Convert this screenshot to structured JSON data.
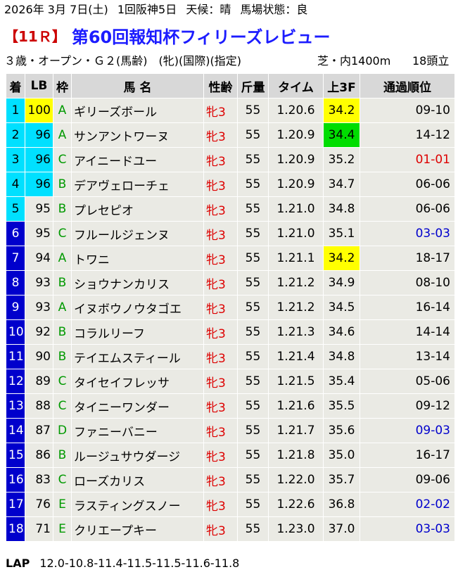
{
  "header": {
    "date": "2026年 3月 7日(土)",
    "meeting": "1回阪神5日",
    "weather": "天候：晴",
    "track": "馬場状態：良",
    "race_no": "【11Ｒ】",
    "race_name": "第60回報知杯フィリーズレビュー",
    "conditions": "３歳・オープン・Ｇ２(馬齢)　(牝)(国際)(指定)",
    "course": "芝・内1400m",
    "runners": "18頭立"
  },
  "columns": [
    "着",
    "LB",
    "枠",
    "馬 名",
    "性齢",
    "斤量",
    "タイム",
    "上3F",
    "通過順位"
  ],
  "rows": [
    {
      "pos": "1",
      "lb": "100",
      "waku": "A",
      "name": "ギリーズボール",
      "sex": "牝3",
      "wt": "55",
      "time": "1.20.6",
      "f3": "34.2",
      "pass": "09-10"
    },
    {
      "pos": "2",
      "lb": "96",
      "waku": "A",
      "name": "サンアントワーヌ",
      "sex": "牝3",
      "wt": "55",
      "time": "1.20.9",
      "f3": "34.4",
      "pass": "14-12"
    },
    {
      "pos": "3",
      "lb": "96",
      "waku": "C",
      "name": "アイニードユー",
      "sex": "牝3",
      "wt": "55",
      "time": "1.20.9",
      "f3": "35.2",
      "pass": "01-01"
    },
    {
      "pos": "4",
      "lb": "96",
      "waku": "B",
      "name": "デアヴェローチェ",
      "sex": "牝3",
      "wt": "55",
      "time": "1.20.9",
      "f3": "34.7",
      "pass": "06-06"
    },
    {
      "pos": "5",
      "lb": "95",
      "waku": "B",
      "name": "プレセピオ",
      "sex": "牝3",
      "wt": "55",
      "time": "1.21.0",
      "f3": "34.8",
      "pass": "06-06"
    },
    {
      "pos": "6",
      "lb": "95",
      "waku": "C",
      "name": "フルールジェンヌ",
      "sex": "牝3",
      "wt": "55",
      "time": "1.21.0",
      "f3": "35.1",
      "pass": "03-03"
    },
    {
      "pos": "7",
      "lb": "94",
      "waku": "A",
      "name": "トワニ",
      "sex": "牝3",
      "wt": "55",
      "time": "1.21.1",
      "f3": "34.2",
      "pass": "18-17"
    },
    {
      "pos": "8",
      "lb": "93",
      "waku": "B",
      "name": "ショウナンカリス",
      "sex": "牝3",
      "wt": "55",
      "time": "1.21.2",
      "f3": "34.9",
      "pass": "08-10"
    },
    {
      "pos": "9",
      "lb": "93",
      "waku": "A",
      "name": "イヌボウノウタゴエ",
      "sex": "牝3",
      "wt": "55",
      "time": "1.21.2",
      "f3": "34.5",
      "pass": "16-14"
    },
    {
      "pos": "10",
      "lb": "92",
      "waku": "B",
      "name": "コラルリーフ",
      "sex": "牝3",
      "wt": "55",
      "time": "1.21.3",
      "f3": "34.6",
      "pass": "14-14"
    },
    {
      "pos": "11",
      "lb": "90",
      "waku": "B",
      "name": "テイエムスティール",
      "sex": "牝3",
      "wt": "55",
      "time": "1.21.4",
      "f3": "34.8",
      "pass": "13-14"
    },
    {
      "pos": "12",
      "lb": "89",
      "waku": "C",
      "name": "タイセイフレッサ",
      "sex": "牝3",
      "wt": "55",
      "time": "1.21.5",
      "f3": "35.4",
      "pass": "05-06"
    },
    {
      "pos": "13",
      "lb": "88",
      "waku": "C",
      "name": "タイニーワンダー",
      "sex": "牝3",
      "wt": "55",
      "time": "1.21.6",
      "f3": "35.5",
      "pass": "09-12"
    },
    {
      "pos": "14",
      "lb": "87",
      "waku": "D",
      "name": "ファニーバニー",
      "sex": "牝3",
      "wt": "55",
      "time": "1.21.7",
      "f3": "35.6",
      "pass": "09-03"
    },
    {
      "pos": "15",
      "lb": "86",
      "waku": "B",
      "name": "ルージュサウダージ",
      "sex": "牝3",
      "wt": "55",
      "time": "1.21.8",
      "f3": "35.0",
      "pass": "16-17"
    },
    {
      "pos": "16",
      "lb": "83",
      "waku": "C",
      "name": "ローズカリス",
      "sex": "牝3",
      "wt": "55",
      "time": "1.22.0",
      "f3": "35.7",
      "pass": "09-06"
    },
    {
      "pos": "17",
      "lb": "76",
      "waku": "E",
      "name": "ラスティングスノー",
      "sex": "牝3",
      "wt": "55",
      "time": "1.22.6",
      "f3": "36.8",
      "pass": "02-02"
    },
    {
      "pos": "18",
      "lb": "71",
      "waku": "E",
      "name": "クリエープキー",
      "sex": "牝3",
      "wt": "55",
      "time": "1.23.0",
      "f3": "37.0",
      "pass": "03-03"
    }
  ],
  "highlights": {
    "pos_top": [
      "1",
      "2",
      "3",
      "4",
      "5"
    ],
    "lb_yellow": [
      "1"
    ],
    "lb_cyan": [
      "2",
      "3",
      "4"
    ],
    "f3_yellow": [
      "1",
      "7"
    ],
    "f3_green": [
      "2"
    ],
    "pass_red": [
      "3"
    ],
    "pass_blue": [
      "6",
      "14",
      "17",
      "18"
    ]
  },
  "lap": {
    "label": "LAP",
    "value": "12.0-10.8-11.4-11.5-11.5-11.6-11.8"
  }
}
